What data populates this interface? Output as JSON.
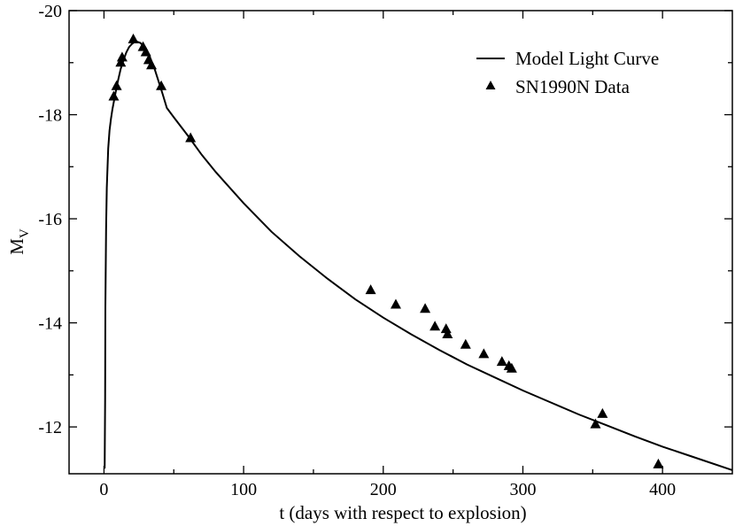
{
  "chart_data": {
    "type": "line",
    "title": "",
    "xlabel": "t (days with respect to explosion)",
    "ylabel_main": "M",
    "ylabel_sub": "V",
    "xlim": [
      -25,
      450
    ],
    "ylim": [
      -11.1,
      -20
    ],
    "x_ticks": [
      0,
      100,
      200,
      300,
      400
    ],
    "x_tick_labels": [
      "0",
      "100",
      "200",
      "300",
      "400"
    ],
    "y_ticks": [
      -12,
      -14,
      -16,
      -18,
      -20
    ],
    "y_tick_labels": [
      "-12",
      "-14",
      "-16",
      "-18",
      "-20"
    ],
    "grid": false,
    "legend": {
      "position": "top-right",
      "entries": [
        "Model Light Curve",
        "SN1990N Data"
      ]
    },
    "series": [
      {
        "name": "Model Light Curve",
        "kind": "line",
        "x": [
          0.5,
          0.8,
          1,
          1.5,
          2,
          3,
          4,
          5,
          6,
          8,
          10,
          12,
          14,
          16,
          18,
          20,
          22,
          24,
          26,
          28,
          30,
          33,
          36,
          39,
          42,
          45,
          50,
          60,
          70,
          80,
          100,
          120,
          140,
          160,
          180,
          200,
          220,
          240,
          260,
          280,
          300,
          320,
          340,
          360,
          380,
          400,
          420,
          450
        ],
        "y": [
          -11.2,
          -12.5,
          -14.3,
          -15.8,
          -16.6,
          -17.35,
          -17.7,
          -17.92,
          -18.1,
          -18.38,
          -18.65,
          -18.88,
          -19.05,
          -19.2,
          -19.3,
          -19.36,
          -19.4,
          -19.4,
          -19.38,
          -19.33,
          -19.25,
          -19.1,
          -18.9,
          -18.65,
          -18.4,
          -18.13,
          -17.95,
          -17.6,
          -17.23,
          -16.9,
          -16.3,
          -15.75,
          -15.28,
          -14.85,
          -14.45,
          -14.1,
          -13.78,
          -13.48,
          -13.2,
          -12.95,
          -12.7,
          -12.47,
          -12.24,
          -12.03,
          -11.82,
          -11.62,
          -11.44,
          -11.17
        ]
      },
      {
        "name": "SN1990N Data",
        "kind": "scatter",
        "marker": "triangle-up",
        "x": [
          7,
          9,
          12,
          13,
          21,
          28,
          30,
          32,
          34,
          41,
          62,
          191,
          209,
          230,
          237,
          245,
          246,
          259,
          272,
          285,
          290,
          292,
          352,
          357,
          397
        ],
        "y": [
          -18.35,
          -18.55,
          -19.0,
          -19.1,
          -19.45,
          -19.3,
          -19.2,
          -19.05,
          -18.95,
          -18.55,
          -17.55,
          -14.63,
          -14.35,
          -14.27,
          -13.93,
          -13.88,
          -13.78,
          -13.58,
          -13.4,
          -13.25,
          -13.17,
          -13.12,
          -12.05,
          -12.25,
          -11.28
        ]
      }
    ]
  }
}
